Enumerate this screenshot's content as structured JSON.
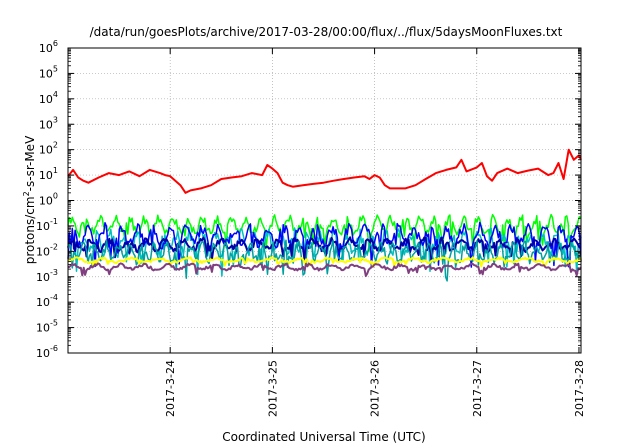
{
  "chart_data": {
    "type": "line",
    "title": "/data/run/goesPlots/archive/2017-03-28/00:00/flux/../flux/5daysMoonFluxes.txt",
    "xlabel": "Coordinated Universal Time (UTC)",
    "ylabel": {
      "base": "protons/cm",
      "sup": "2",
      "rest": "-s-sr-MeV"
    },
    "yscale": "log",
    "ylim": [
      1e-06,
      1000000.0
    ],
    "xlim": [
      0,
      5.02
    ],
    "x_ticks": [
      {
        "x": 1,
        "label": "2017-3-24"
      },
      {
        "x": 2,
        "label": "2017-3-25"
      },
      {
        "x": 3,
        "label": "2017-3-26"
      },
      {
        "x": 4,
        "label": "2017-3-27"
      },
      {
        "x": 5,
        "label": "2017-3-28"
      }
    ],
    "y_ticks": [
      {
        "exp": -6,
        "label": "10",
        "sup": "-6"
      },
      {
        "exp": -5,
        "label": "10",
        "sup": "-5"
      },
      {
        "exp": -4,
        "label": "10",
        "sup": "-4"
      },
      {
        "exp": -3,
        "label": "10",
        "sup": "-3"
      },
      {
        "exp": -2,
        "label": "10",
        "sup": "-2"
      },
      {
        "exp": -1,
        "label": "10",
        "sup": "-1"
      },
      {
        "exp": 0,
        "label": "10",
        "sup": "0"
      },
      {
        "exp": 1,
        "label": "10",
        "sup": "1"
      },
      {
        "exp": 2,
        "label": "10",
        "sup": "2"
      },
      {
        "exp": 3,
        "label": "10",
        "sup": "3"
      },
      {
        "exp": 4,
        "label": "10",
        "sup": "4"
      },
      {
        "exp": 5,
        "label": "10",
        "sup": "5"
      },
      {
        "exp": 6,
        "label": "10",
        "sup": "6"
      }
    ],
    "grid": true,
    "series": [
      {
        "color": "#ff0000",
        "width": 2,
        "x": [
          0,
          0.05,
          0.1,
          0.15,
          0.2,
          0.3,
          0.4,
          0.5,
          0.6,
          0.7,
          0.8,
          0.9,
          0.95,
          1.0,
          1.05,
          1.1,
          1.15,
          1.2,
          1.3,
          1.4,
          1.5,
          1.6,
          1.7,
          1.8,
          1.9,
          1.95,
          2.0,
          2.05,
          2.1,
          2.15,
          2.2,
          2.3,
          2.4,
          2.5,
          2.6,
          2.7,
          2.8,
          2.9,
          2.95,
          3.0,
          3.05,
          3.1,
          3.15,
          3.2,
          3.3,
          3.4,
          3.5,
          3.6,
          3.7,
          3.8,
          3.85,
          3.9,
          4.0,
          4.05,
          4.1,
          4.15,
          4.2,
          4.3,
          4.4,
          4.5,
          4.6,
          4.7,
          4.75,
          4.8,
          4.85,
          4.9,
          4.95,
          5.0,
          5.02
        ],
        "y": [
          9,
          16,
          8,
          6,
          5,
          8,
          12,
          10,
          14,
          9,
          16,
          12,
          10,
          9,
          6,
          4,
          2,
          2.5,
          3,
          4,
          7,
          8,
          9,
          12,
          10,
          25,
          18,
          12,
          5,
          4,
          3.5,
          4,
          4.5,
          5,
          6,
          7,
          8,
          9,
          7,
          10,
          8,
          4,
          3,
          3,
          3,
          4,
          7,
          12,
          16,
          20,
          40,
          14,
          20,
          30,
          9,
          6,
          12,
          18,
          12,
          15,
          18,
          10,
          12,
          30,
          7,
          100,
          40,
          60,
          40
        ]
      },
      {
        "color": "#00ff00",
        "width": 1.5,
        "base": 0.1,
        "amp": 0.45,
        "freq": 37,
        "seed": 1
      },
      {
        "color": "#00c0c0",
        "width": 1.5,
        "base": 0.022,
        "amp": 0.6,
        "freq": 41,
        "seed": 2
      },
      {
        "color": "#0000ff",
        "width": 1.5,
        "base": 0.04,
        "amp": 0.55,
        "freq": 33,
        "seed": 3
      },
      {
        "color": "#0000aa",
        "width": 2,
        "base": 0.018,
        "amp": 0.3,
        "freq": 29,
        "seed": 4
      },
      {
        "color": "#00a0a0",
        "width": 1.5,
        "base": 0.009,
        "amp": 0.5,
        "freq": 45,
        "seed": 5
      },
      {
        "color": "#ffff00",
        "width": 2,
        "base": 0.0045,
        "amp": 0.12,
        "freq": 19,
        "seed": 6
      },
      {
        "color": "#804080",
        "width": 2,
        "base": 0.0024,
        "amp": 0.15,
        "freq": 23,
        "seed": 7
      }
    ]
  }
}
